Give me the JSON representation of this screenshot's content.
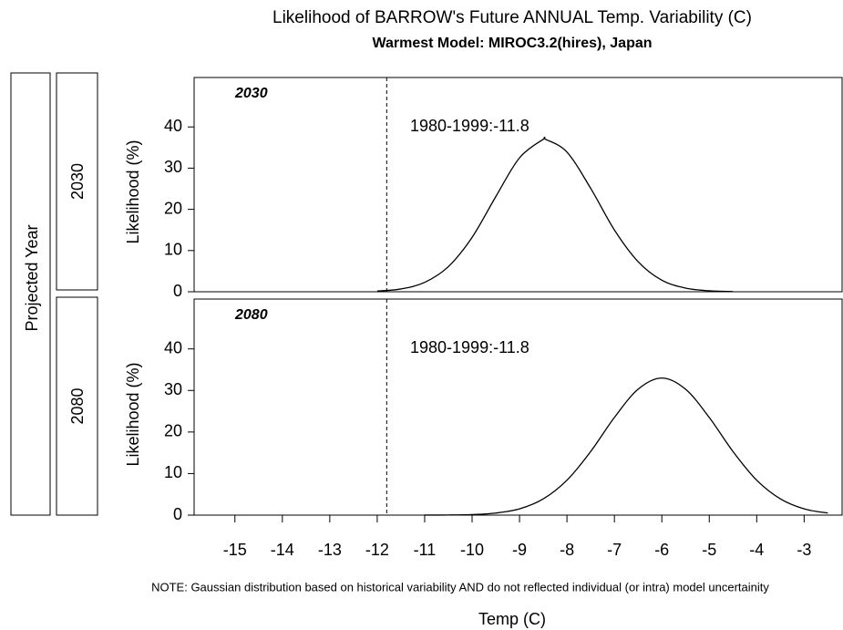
{
  "chart_data": {
    "type": "line",
    "title": "Likelihood of BARROW's Future ANNUAL Temp. Variability (C)",
    "subtitle": "Warmest Model: MIROC3.2(hires), Japan",
    "row_label": "Projected Year",
    "y_label": "Likelihood (%)",
    "x_label": "Temp (C)",
    "note": "NOTE: Gaussian distribution based on historical variability AND do not reflected individual (or intra) model uncertainity",
    "xlim": [
      -15.86,
      -2.2
    ],
    "xticks": [
      -15,
      -14,
      -13,
      -12,
      -11,
      -10,
      -9,
      -8,
      -7,
      -6,
      -5,
      -4,
      -3
    ],
    "ylim": [
      0,
      52
    ],
    "yticks": [
      0,
      10,
      20,
      30,
      40
    ],
    "reference_line": -11.8,
    "color": "#000000",
    "panels": [
      {
        "strip_label": "2030",
        "label": "2030",
        "annotation": "1980-1999:-11.8",
        "x": [
          -12,
          -11.5,
          -11,
          -10.5,
          -10,
          -9.5,
          -9,
          -8.5,
          -8.45,
          -8,
          -7.5,
          -7,
          -6.5,
          -6,
          -5.5,
          -5,
          -4.5
        ],
        "values": [
          0.17,
          0.68,
          2.28,
          6.1,
          13.2,
          23.1,
          32.5,
          37.0,
          37.0,
          33.9,
          25.1,
          15.0,
          7.3,
          2.8,
          0.89,
          0.23,
          0.05
        ]
      },
      {
        "strip_label": "2080",
        "label": "2080",
        "annotation": "1980-1999:-11.8",
        "x": [
          -11,
          -10.5,
          -10,
          -9.5,
          -9,
          -8.5,
          -8,
          -7.5,
          -7,
          -6.5,
          -6,
          -5.5,
          -5,
          -4.5,
          -4,
          -3.5,
          -3,
          -2.5
        ],
        "values": [
          0.01,
          0.03,
          0.14,
          0.5,
          1.5,
          3.9,
          8.4,
          15.3,
          23.5,
          30.3,
          33,
          30.3,
          23.5,
          15.3,
          8.4,
          3.9,
          1.5,
          0.5
        ]
      }
    ]
  }
}
